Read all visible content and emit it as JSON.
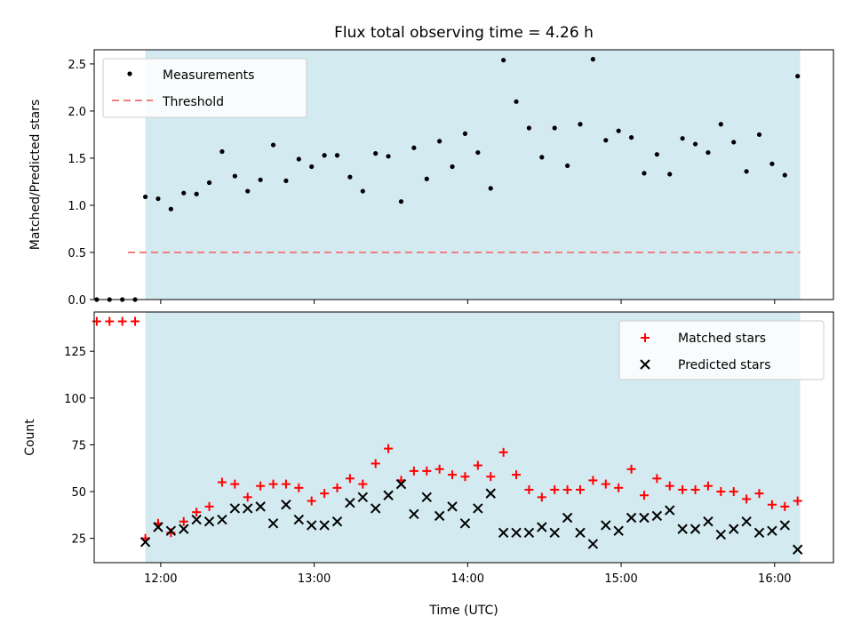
{
  "chart_data": [
    {
      "type": "scatter",
      "title": "Flux total observing time = 4.26 h",
      "ylabel": "Matched/Predicted stars",
      "xlabel": "",
      "xlim": [
        "11:34",
        "16:23"
      ],
      "ylim": [
        0,
        2.65
      ],
      "x_ticks": [
        "12:00",
        "13:00",
        "14:00",
        "15:00",
        "16:00"
      ],
      "y_ticks": [
        "0.0",
        "0.5",
        "1.0",
        "1.5",
        "2.0",
        "2.5"
      ],
      "shaded_region": {
        "x_start": "11:54",
        "x_end": "16:10",
        "color": "#d3eaf1"
      },
      "legend": {
        "placement": "upper-left",
        "entries": [
          "Measurements",
          "Threshold"
        ]
      },
      "threshold": {
        "name": "Threshold",
        "value": 0.5,
        "x_start": "11:34",
        "x_end": "16:10",
        "color": "#f08080",
        "style": "dashed"
      },
      "series": [
        {
          "name": "Measurements",
          "marker": "dot",
          "color": "#000000",
          "points": [
            {
              "x": "11:35",
              "y": 0.0
            },
            {
              "x": "11:40",
              "y": 0.0
            },
            {
              "x": "11:45",
              "y": 0.0
            },
            {
              "x": "11:50",
              "y": 0.0
            },
            {
              "x": "11:54",
              "y": 1.09
            },
            {
              "x": "11:59",
              "y": 1.07
            },
            {
              "x": "12:04",
              "y": 0.96
            },
            {
              "x": "12:09",
              "y": 1.13
            },
            {
              "x": "12:14",
              "y": 1.12
            },
            {
              "x": "12:19",
              "y": 1.24
            },
            {
              "x": "12:24",
              "y": 1.57
            },
            {
              "x": "12:29",
              "y": 1.31
            },
            {
              "x": "12:34",
              "y": 1.15
            },
            {
              "x": "12:39",
              "y": 1.27
            },
            {
              "x": "12:44",
              "y": 1.64
            },
            {
              "x": "12:49",
              "y": 1.26
            },
            {
              "x": "12:54",
              "y": 1.49
            },
            {
              "x": "12:59",
              "y": 1.41
            },
            {
              "x": "13:04",
              "y": 1.53
            },
            {
              "x": "13:09",
              "y": 1.53
            },
            {
              "x": "13:14",
              "y": 1.3
            },
            {
              "x": "13:19",
              "y": 1.15
            },
            {
              "x": "13:24",
              "y": 1.55
            },
            {
              "x": "13:29",
              "y": 1.52
            },
            {
              "x": "13:34",
              "y": 1.04
            },
            {
              "x": "13:39",
              "y": 1.61
            },
            {
              "x": "13:44",
              "y": 1.28
            },
            {
              "x": "13:49",
              "y": 1.68
            },
            {
              "x": "13:54",
              "y": 1.41
            },
            {
              "x": "13:59",
              "y": 1.76
            },
            {
              "x": "14:04",
              "y": 1.56
            },
            {
              "x": "14:09",
              "y": 1.18
            },
            {
              "x": "14:14",
              "y": 2.54
            },
            {
              "x": "14:19",
              "y": 2.1
            },
            {
              "x": "14:24",
              "y": 1.82
            },
            {
              "x": "14:29",
              "y": 1.51
            },
            {
              "x": "14:34",
              "y": 1.82
            },
            {
              "x": "14:39",
              "y": 1.42
            },
            {
              "x": "14:44",
              "y": 1.86
            },
            {
              "x": "14:49",
              "y": 2.55
            },
            {
              "x": "14:54",
              "y": 1.69
            },
            {
              "x": "14:59",
              "y": 1.79
            },
            {
              "x": "15:04",
              "y": 1.72
            },
            {
              "x": "15:09",
              "y": 1.34
            },
            {
              "x": "15:14",
              "y": 1.54
            },
            {
              "x": "15:19",
              "y": 1.33
            },
            {
              "x": "15:24",
              "y": 1.71
            },
            {
              "x": "15:29",
              "y": 1.65
            },
            {
              "x": "15:34",
              "y": 1.56
            },
            {
              "x": "15:39",
              "y": 1.86
            },
            {
              "x": "15:44",
              "y": 1.67
            },
            {
              "x": "15:49",
              "y": 1.36
            },
            {
              "x": "15:54",
              "y": 1.75
            },
            {
              "x": "15:59",
              "y": 1.44
            },
            {
              "x": "16:04",
              "y": 1.32
            },
            {
              "x": "16:09",
              "y": 2.37
            }
          ]
        }
      ]
    },
    {
      "type": "scatter",
      "title": "",
      "xlabel": "Time (UTC)",
      "ylabel": "Count",
      "xlim": [
        "11:34",
        "16:23"
      ],
      "ylim": [
        12,
        146
      ],
      "x_ticks": [
        "12:00",
        "13:00",
        "14:00",
        "15:00",
        "16:00"
      ],
      "y_ticks": [
        "25",
        "50",
        "75",
        "100",
        "125"
      ],
      "shaded_region": {
        "x_start": "11:54",
        "x_end": "16:10",
        "color": "#d3eaf1"
      },
      "legend": {
        "placement": "upper-right",
        "entries": [
          "Matched stars",
          "Predicted stars"
        ]
      },
      "series": [
        {
          "name": "Matched stars",
          "marker": "plus",
          "color": "#ff0000",
          "points": [
            {
              "x": "11:35",
              "y": 141
            },
            {
              "x": "11:40",
              "y": 141
            },
            {
              "x": "11:45",
              "y": 141
            },
            {
              "x": "11:50",
              "y": 141
            },
            {
              "x": "11:54",
              "y": 25
            },
            {
              "x": "11:59",
              "y": 33
            },
            {
              "x": "12:04",
              "y": 28
            },
            {
              "x": "12:09",
              "y": 34
            },
            {
              "x": "12:14",
              "y": 39
            },
            {
              "x": "12:19",
              "y": 42
            },
            {
              "x": "12:24",
              "y": 55
            },
            {
              "x": "12:29",
              "y": 54
            },
            {
              "x": "12:34",
              "y": 47
            },
            {
              "x": "12:39",
              "y": 53
            },
            {
              "x": "12:44",
              "y": 54
            },
            {
              "x": "12:49",
              "y": 54
            },
            {
              "x": "12:54",
              "y": 52
            },
            {
              "x": "12:59",
              "y": 45
            },
            {
              "x": "13:04",
              "y": 49
            },
            {
              "x": "13:09",
              "y": 52
            },
            {
              "x": "13:14",
              "y": 57
            },
            {
              "x": "13:19",
              "y": 54
            },
            {
              "x": "13:24",
              "y": 65
            },
            {
              "x": "13:29",
              "y": 73
            },
            {
              "x": "13:34",
              "y": 56
            },
            {
              "x": "13:39",
              "y": 61
            },
            {
              "x": "13:44",
              "y": 61
            },
            {
              "x": "13:49",
              "y": 62
            },
            {
              "x": "13:54",
              "y": 59
            },
            {
              "x": "13:59",
              "y": 58
            },
            {
              "x": "14:04",
              "y": 64
            },
            {
              "x": "14:09",
              "y": 58
            },
            {
              "x": "14:14",
              "y": 71
            },
            {
              "x": "14:19",
              "y": 59
            },
            {
              "x": "14:24",
              "y": 51
            },
            {
              "x": "14:29",
              "y": 47
            },
            {
              "x": "14:34",
              "y": 51
            },
            {
              "x": "14:39",
              "y": 51
            },
            {
              "x": "14:44",
              "y": 51
            },
            {
              "x": "14:49",
              "y": 56
            },
            {
              "x": "14:54",
              "y": 54
            },
            {
              "x": "14:59",
              "y": 52
            },
            {
              "x": "15:04",
              "y": 62
            },
            {
              "x": "15:09",
              "y": 48
            },
            {
              "x": "15:14",
              "y": 57
            },
            {
              "x": "15:19",
              "y": 53
            },
            {
              "x": "15:24",
              "y": 51
            },
            {
              "x": "15:29",
              "y": 51
            },
            {
              "x": "15:34",
              "y": 53
            },
            {
              "x": "15:39",
              "y": 50
            },
            {
              "x": "15:44",
              "y": 50
            },
            {
              "x": "15:49",
              "y": 46
            },
            {
              "x": "15:54",
              "y": 49
            },
            {
              "x": "15:59",
              "y": 43
            },
            {
              "x": "16:04",
              "y": 42
            },
            {
              "x": "16:09",
              "y": 45
            }
          ]
        },
        {
          "name": "Predicted stars",
          "marker": "x",
          "color": "#000000",
          "points": [
            {
              "x": "11:54",
              "y": 23
            },
            {
              "x": "11:59",
              "y": 31
            },
            {
              "x": "12:04",
              "y": 29
            },
            {
              "x": "12:09",
              "y": 30
            },
            {
              "x": "12:14",
              "y": 35
            },
            {
              "x": "12:19",
              "y": 34
            },
            {
              "x": "12:24",
              "y": 35
            },
            {
              "x": "12:29",
              "y": 41
            },
            {
              "x": "12:34",
              "y": 41
            },
            {
              "x": "12:39",
              "y": 42
            },
            {
              "x": "12:44",
              "y": 33
            },
            {
              "x": "12:49",
              "y": 43
            },
            {
              "x": "12:54",
              "y": 35
            },
            {
              "x": "12:59",
              "y": 32
            },
            {
              "x": "13:04",
              "y": 32
            },
            {
              "x": "13:09",
              "y": 34
            },
            {
              "x": "13:14",
              "y": 44
            },
            {
              "x": "13:19",
              "y": 47
            },
            {
              "x": "13:24",
              "y": 41
            },
            {
              "x": "13:29",
              "y": 48
            },
            {
              "x": "13:34",
              "y": 54
            },
            {
              "x": "13:39",
              "y": 38
            },
            {
              "x": "13:44",
              "y": 47
            },
            {
              "x": "13:49",
              "y": 37
            },
            {
              "x": "13:54",
              "y": 42
            },
            {
              "x": "13:59",
              "y": 33
            },
            {
              "x": "14:04",
              "y": 41
            },
            {
              "x": "14:09",
              "y": 49
            },
            {
              "x": "14:14",
              "y": 28
            },
            {
              "x": "14:19",
              "y": 28
            },
            {
              "x": "14:24",
              "y": 28
            },
            {
              "x": "14:29",
              "y": 31
            },
            {
              "x": "14:34",
              "y": 28
            },
            {
              "x": "14:39",
              "y": 36
            },
            {
              "x": "14:44",
              "y": 28
            },
            {
              "x": "14:49",
              "y": 22
            },
            {
              "x": "14:54",
              "y": 32
            },
            {
              "x": "14:59",
              "y": 29
            },
            {
              "x": "15:04",
              "y": 36
            },
            {
              "x": "15:09",
              "y": 36
            },
            {
              "x": "15:14",
              "y": 37
            },
            {
              "x": "15:19",
              "y": 40
            },
            {
              "x": "15:24",
              "y": 30
            },
            {
              "x": "15:29",
              "y": 30
            },
            {
              "x": "15:34",
              "y": 34
            },
            {
              "x": "15:39",
              "y": 27
            },
            {
              "x": "15:44",
              "y": 30
            },
            {
              "x": "15:49",
              "y": 34
            },
            {
              "x": "15:54",
              "y": 28
            },
            {
              "x": "15:59",
              "y": 29
            },
            {
              "x": "16:04",
              "y": 32
            },
            {
              "x": "16:09",
              "y": 19
            }
          ]
        }
      ]
    }
  ]
}
